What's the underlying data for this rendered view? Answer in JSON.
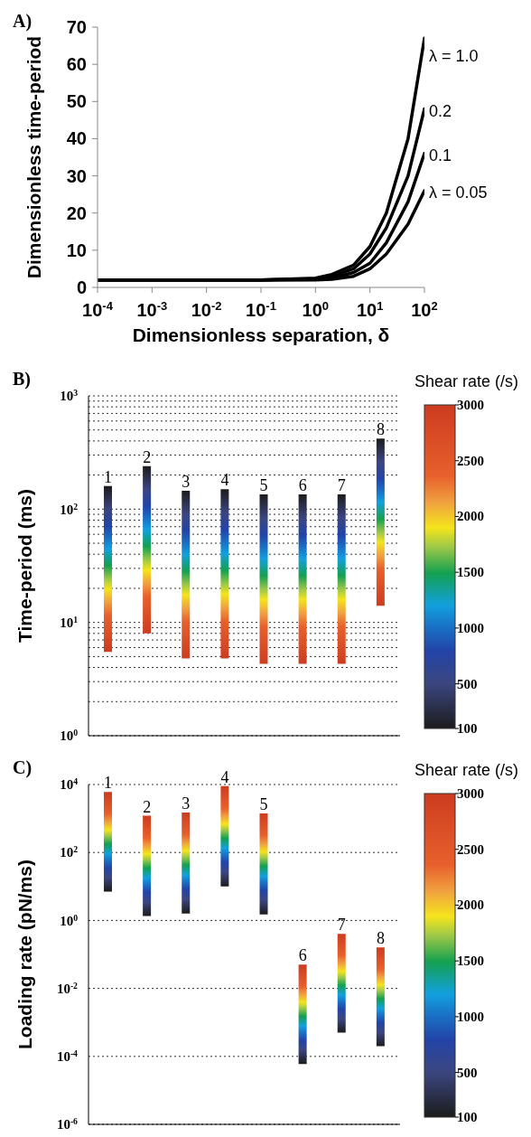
{
  "chart_data": [
    {
      "type": "line",
      "title": "A)",
      "xlabel": "Dimensionless separation, δ",
      "ylabel": "Dimensionless time-period",
      "log": "x",
      "xlim": [
        0.0001,
        100
      ],
      "xticks": [
        {
          "value": 0.0001,
          "label": "10$^{-4}$"
        },
        {
          "value": 0.001,
          "label": "10$^{-3}$"
        },
        {
          "value": 0.01,
          "label": "10$^{-2}$"
        },
        {
          "value": 0.1,
          "label": "10$^{-1}$"
        },
        {
          "value": 1,
          "label": "10$^{0}$"
        },
        {
          "value": 10,
          "label": "10$^{1}$"
        },
        {
          "value": 100,
          "label": "10$^{2}$"
        }
      ],
      "ylim": [
        0,
        70
      ],
      "yticks": [
        0,
        10,
        20,
        30,
        40,
        50,
        60,
        70
      ],
      "x": [
        0.0001,
        0.001,
        0.01,
        0.1,
        1,
        2,
        5,
        10,
        20,
        50,
        100
      ],
      "series": [
        {
          "name": "λ = 1.0",
          "color": "#000000",
          "values": [
            2,
            2,
            2,
            2,
            2.5,
            3.5,
            6,
            11,
            20,
            40,
            67
          ]
        },
        {
          "name": "0.2",
          "color": "#000000",
          "values": [
            2,
            2,
            2,
            2,
            2.3,
            3,
            5,
            9,
            16,
            30,
            48
          ]
        },
        {
          "name": "0.1",
          "color": "#000000",
          "values": [
            2,
            2,
            2,
            2,
            2.1,
            2.5,
            4,
            6.5,
            12,
            23,
            36
          ]
        },
        {
          "name": "λ = 0.05",
          "color": "#000000",
          "values": [
            2,
            2,
            2,
            2,
            2,
            2.2,
            3,
            5,
            9,
            17,
            26
          ]
        }
      ]
    },
    {
      "type": "bar",
      "title": "B)",
      "ylabel": "Time-period (ms)",
      "clabel": "Shear rate (/s)",
      "log": "y",
      "grid": "y",
      "categories": [
        "1",
        "2",
        "3",
        "4",
        "5",
        "6",
        "7",
        "8"
      ],
      "base": [
        5.5,
        8,
        4.8,
        4.8,
        4.3,
        4.3,
        4.3,
        14
      ],
      "values": [
        154.5,
        232,
        140.2,
        145.2,
        130.7,
        130.7,
        130.7,
        406
      ],
      "colors": [
        "#1c1c1c",
        "#1c1c1c",
        "#1c1c1c",
        "#1c1c1c",
        "#1c1c1c",
        "#1c1c1c",
        "#1c1c1c",
        "#1c1c1c"
      ],
      "clim": [
        100,
        3000
      ],
      "cticks": [
        100,
        500,
        1000,
        1500,
        2000,
        2500,
        3000
      ],
      "ylim": [
        1,
        1000
      ],
      "yticks": [
        {
          "value": 1,
          "label": "10$^{0}$"
        },
        {
          "value": 2,
          "label": null
        },
        {
          "value": 3,
          "label": null
        },
        {
          "value": 4,
          "label": null
        },
        {
          "value": 5,
          "label": null
        },
        {
          "value": 6,
          "label": null
        },
        {
          "value": 7,
          "label": null
        },
        {
          "value": 8,
          "label": null
        },
        {
          "value": 9,
          "label": null
        },
        {
          "value": 10,
          "label": "10$^{1}$"
        },
        {
          "value": 20,
          "label": null
        },
        {
          "value": 30,
          "label": null
        },
        {
          "value": 40,
          "label": null
        },
        {
          "value": 50,
          "label": null
        },
        {
          "value": 60,
          "label": null
        },
        {
          "value": 70,
          "label": null
        },
        {
          "value": 80,
          "label": null
        },
        {
          "value": 90,
          "label": null
        },
        {
          "value": 100,
          "label": "10$^{2}$"
        },
        {
          "value": 200,
          "label": null
        },
        {
          "value": 300,
          "label": null
        },
        {
          "value": 400,
          "label": null
        },
        {
          "value": 500,
          "label": null
        },
        {
          "value": 600,
          "label": null
        },
        {
          "value": 700,
          "label": null
        },
        {
          "value": 800,
          "label": null
        },
        {
          "value": 900,
          "label": null
        },
        {
          "value": 1000,
          "label": "10$^{3}$"
        }
      ]
    },
    {
      "type": "bar",
      "title": "C)",
      "ylabel": "Loading rate (pN/ms)",
      "clabel": "Shear rate (/s)",
      "log": "y",
      "grid": "y",
      "categories": [
        "1",
        "2",
        "3",
        "4",
        "5",
        "6",
        "7",
        "8"
      ],
      "base": [
        7,
        1.35,
        1.6,
        10,
        1.5,
        6e-05,
        0.0005,
        0.0002
      ],
      "values": [
        5993,
        1198.65,
        1498.4,
        8990,
        1398.5,
        0.04994,
        0.3995,
        0.1598
      ],
      "colors": [
        "#cc3c20",
        "#cc3c20",
        "#cc3c20",
        "#cc3c20",
        "#cc3c20",
        "#cc3c20",
        "#cc3c20",
        "#cc3c20"
      ],
      "clim": [
        100,
        3000
      ],
      "cticks": [
        100,
        500,
        1000,
        1500,
        2000,
        2500,
        3000
      ],
      "ylim": [
        1e-06,
        10000
      ],
      "yticks": [
        {
          "value": 1e-06,
          "label": "10$^{-6}$"
        },
        {
          "value": 0.0001,
          "label": "10$^{-4}$"
        },
        {
          "value": 0.01,
          "label": "10$^{-2}$"
        },
        {
          "value": 1,
          "label": "10$^{0}$"
        },
        {
          "value": 100,
          "label": "10$^{2}$"
        },
        {
          "value": 10000,
          "label": "10$^{4}$"
        }
      ]
    }
  ]
}
